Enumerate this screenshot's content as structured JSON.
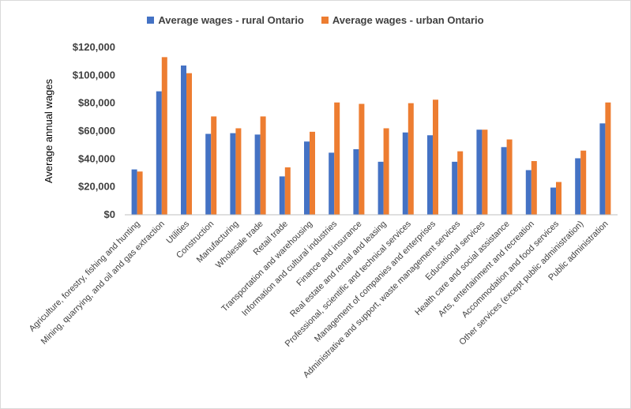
{
  "chart_data": {
    "type": "bar",
    "title": "",
    "xlabel": "",
    "ylabel": "Average annual wages",
    "ylim": [
      0,
      120000
    ],
    "yticks": [
      0,
      20000,
      40000,
      60000,
      80000,
      100000,
      120000
    ],
    "ytick_labels": [
      "$0",
      "$20,000",
      "$40,000",
      "$60,000",
      "$80,000",
      "$100,000",
      "$120,000"
    ],
    "legend_position": "top-center",
    "grid": false,
    "categories": [
      "Agriculture, forestry, fishing and hunting",
      "Mining, quarrying, and oil and gas extraction",
      "Utilities",
      "Construction",
      "Manufacturing",
      "Wholesale trade",
      "Retail trade",
      "Transportation and warehousing",
      "Information and cultural industries",
      "Finance and insurance",
      "Real estate and rental and leasing",
      "Professional, scientific and technical services",
      "Management of companies and enterprises",
      "Administrative and support, waste management services",
      "Educational services",
      "Health care and social assistance",
      "Arts, entertainment and recreation",
      "Accommodation and food services",
      "Other services (except public administration)",
      "Public administration"
    ],
    "series": [
      {
        "name": "Average wages - rural Ontario",
        "color": "#4472c4",
        "values": [
          32500,
          88500,
          107000,
          58000,
          58500,
          57500,
          27500,
          52500,
          44500,
          47000,
          38000,
          59000,
          57000,
          38000,
          61000,
          48500,
          32000,
          19500,
          40500,
          65500
        ]
      },
      {
        "name": "Average wages - urban Ontario",
        "color": "#ed7d31",
        "values": [
          31000,
          113000,
          101500,
          70500,
          62000,
          70500,
          34000,
          59500,
          80500,
          79500,
          62000,
          80000,
          82500,
          45500,
          61000,
          54000,
          38500,
          23500,
          46000,
          80500
        ]
      }
    ]
  }
}
